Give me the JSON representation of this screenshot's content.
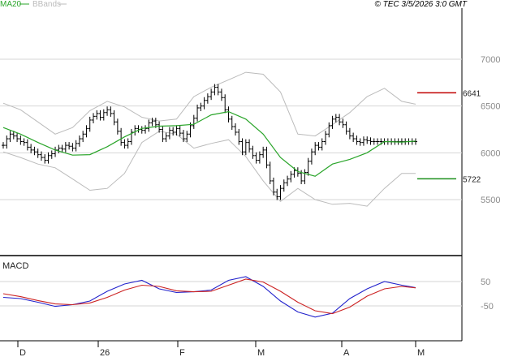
{
  "header": {
    "legend": [
      {
        "label": "MA20",
        "color": "#2aa52a"
      },
      {
        "label": "BBands",
        "color": "#bbbbbb"
      }
    ],
    "timestamp": "© TEC 3/5/2026 3:0 GMT"
  },
  "chart_data": [
    {
      "type": "candlestick",
      "price_axis": {
        "ticks": [
          5500,
          6000,
          6500,
          7000
        ],
        "tick_labels": [
          "5500",
          "6000",
          "6500",
          "7000"
        ],
        "ylim": [
          5000,
          7500
        ]
      },
      "time_axis": {
        "labels": [
          "D",
          "26",
          "F",
          "M",
          "A",
          "M"
        ]
      },
      "series": [
        {
          "name": "MA20",
          "color": "#2aa52a",
          "x": [
            0,
            5,
            10,
            15,
            20,
            25,
            30,
            35,
            40,
            45,
            50,
            55,
            60,
            65,
            70,
            75,
            80,
            85,
            90,
            95,
            100,
            105,
            110,
            115,
            119
          ],
          "y": [
            6270,
            6200,
            6110,
            6030,
            5975,
            5980,
            6065,
            6170,
            6260,
            6285,
            6290,
            6305,
            6405,
            6440,
            6360,
            6200,
            5950,
            5800,
            5750,
            5880,
            5930,
            6000,
            6120,
            6115,
            6125
          ]
        },
        {
          "name": "BBands upper",
          "color": "#bbbbbb",
          "x": [
            0,
            5,
            10,
            15,
            20,
            25,
            30,
            35,
            40,
            45,
            50,
            55,
            60,
            65,
            70,
            75,
            80,
            85,
            90,
            95,
            100,
            105,
            110,
            115,
            119
          ],
          "y": [
            6530,
            6460,
            6330,
            6200,
            6270,
            6450,
            6550,
            6490,
            6380,
            6340,
            6360,
            6600,
            6700,
            6780,
            6860,
            6840,
            6650,
            6200,
            6180,
            6300,
            6430,
            6600,
            6690,
            6550,
            6520
          ]
        },
        {
          "name": "BBands lower",
          "color": "#bbbbbb",
          "x": [
            0,
            5,
            10,
            15,
            20,
            25,
            30,
            35,
            40,
            45,
            50,
            55,
            60,
            65,
            70,
            75,
            80,
            85,
            90,
            95,
            100,
            105,
            110,
            115,
            119
          ],
          "y": [
            6010,
            5950,
            5880,
            5840,
            5720,
            5600,
            5620,
            5780,
            6110,
            6230,
            6200,
            6050,
            6100,
            6140,
            5960,
            5700,
            5480,
            5620,
            5500,
            5450,
            5460,
            5430,
            5620,
            5780,
            5780
          ]
        }
      ],
      "bars": {
        "x": [
          0,
          1,
          2,
          3,
          4,
          5,
          6,
          7,
          8,
          9,
          10,
          11,
          12,
          13,
          14,
          15,
          16,
          17,
          18,
          19,
          20,
          21,
          22,
          23,
          24,
          25,
          26,
          27,
          28,
          29,
          30,
          31,
          32,
          33,
          34,
          35,
          36,
          37,
          38,
          39,
          40,
          41,
          42,
          43,
          44,
          45,
          46,
          47,
          48,
          49,
          50,
          51,
          52,
          53,
          54,
          55,
          56,
          57,
          58,
          59,
          60,
          61,
          62,
          63,
          64,
          65,
          66,
          67,
          68,
          69,
          70,
          71,
          72,
          73,
          74,
          75,
          76,
          77,
          78,
          79,
          80,
          81,
          82,
          83,
          84,
          85,
          86,
          87,
          88,
          89,
          90,
          91,
          92,
          93,
          94,
          95,
          96,
          97,
          98,
          99,
          100,
          101,
          102,
          103,
          104,
          105,
          106,
          107,
          108,
          109,
          110,
          111,
          112,
          113,
          114,
          115,
          116,
          117,
          118,
          119
        ],
        "close": [
          6080,
          6150,
          6200,
          6180,
          6150,
          6120,
          6110,
          6060,
          6030,
          6010,
          5980,
          5950,
          5920,
          5970,
          5990,
          6030,
          6050,
          6040,
          6080,
          6070,
          6050,
          6100,
          6150,
          6200,
          6260,
          6350,
          6390,
          6420,
          6380,
          6430,
          6460,
          6420,
          6330,
          6230,
          6110,
          6080,
          6120,
          6220,
          6260,
          6250,
          6240,
          6260,
          6320,
          6340,
          6300,
          6250,
          6150,
          6180,
          6240,
          6220,
          6260,
          6210,
          6150,
          6200,
          6290,
          6370,
          6480,
          6500,
          6560,
          6600,
          6650,
          6700,
          6650,
          6590,
          6460,
          6360,
          6280,
          6220,
          6120,
          6010,
          6110,
          6040,
          5970,
          5920,
          5980,
          6030,
          5870,
          5700,
          5580,
          5530,
          5620,
          5680,
          5720,
          5770,
          5810,
          5780,
          5700,
          5790,
          5910,
          6010,
          6080,
          6060,
          6120,
          6200,
          6290,
          6360,
          6380,
          6330,
          6300,
          6230,
          6180,
          6150,
          6120,
          6110,
          6140,
          6130,
          6120,
          6120,
          6120,
          6120,
          6120,
          6120,
          6120,
          6120,
          6120,
          6120,
          6120,
          6120,
          6120,
          6120
        ]
      },
      "reference_levels": [
        {
          "label": "6641",
          "value": 6641,
          "color": "#c00000"
        },
        {
          "label": "5722",
          "value": 5722,
          "color": "#1a8f1a"
        }
      ]
    },
    {
      "type": "line",
      "title": "MACD",
      "y_ticks": [
        50,
        -50
      ],
      "y_tick_labels": [
        "50",
        "-50"
      ],
      "ylim": [
        -110,
        100
      ],
      "series": [
        {
          "name": "MACD",
          "color": "#2222cc",
          "x": [
            0,
            5,
            10,
            15,
            20,
            25,
            30,
            35,
            40,
            45,
            50,
            55,
            60,
            65,
            70,
            75,
            80,
            85,
            90,
            95,
            100,
            105,
            110,
            115,
            119
          ],
          "y": [
            -15,
            -20,
            -35,
            -52,
            -45,
            -30,
            10,
            40,
            55,
            20,
            5,
            8,
            15,
            55,
            70,
            30,
            -30,
            -75,
            -96,
            -80,
            -20,
            20,
            50,
            35,
            25
          ]
        },
        {
          "name": "Signal",
          "color": "#cc2222",
          "x": [
            0,
            5,
            10,
            15,
            20,
            25,
            30,
            35,
            40,
            45,
            50,
            55,
            60,
            65,
            70,
            75,
            80,
            85,
            90,
            95,
            100,
            105,
            110,
            115,
            119
          ],
          "y": [
            0,
            -12,
            -28,
            -42,
            -45,
            -38,
            -15,
            15,
            35,
            30,
            12,
            8,
            10,
            35,
            60,
            48,
            10,
            -35,
            -70,
            -82,
            -55,
            -10,
            20,
            30,
            24
          ]
        }
      ]
    }
  ]
}
